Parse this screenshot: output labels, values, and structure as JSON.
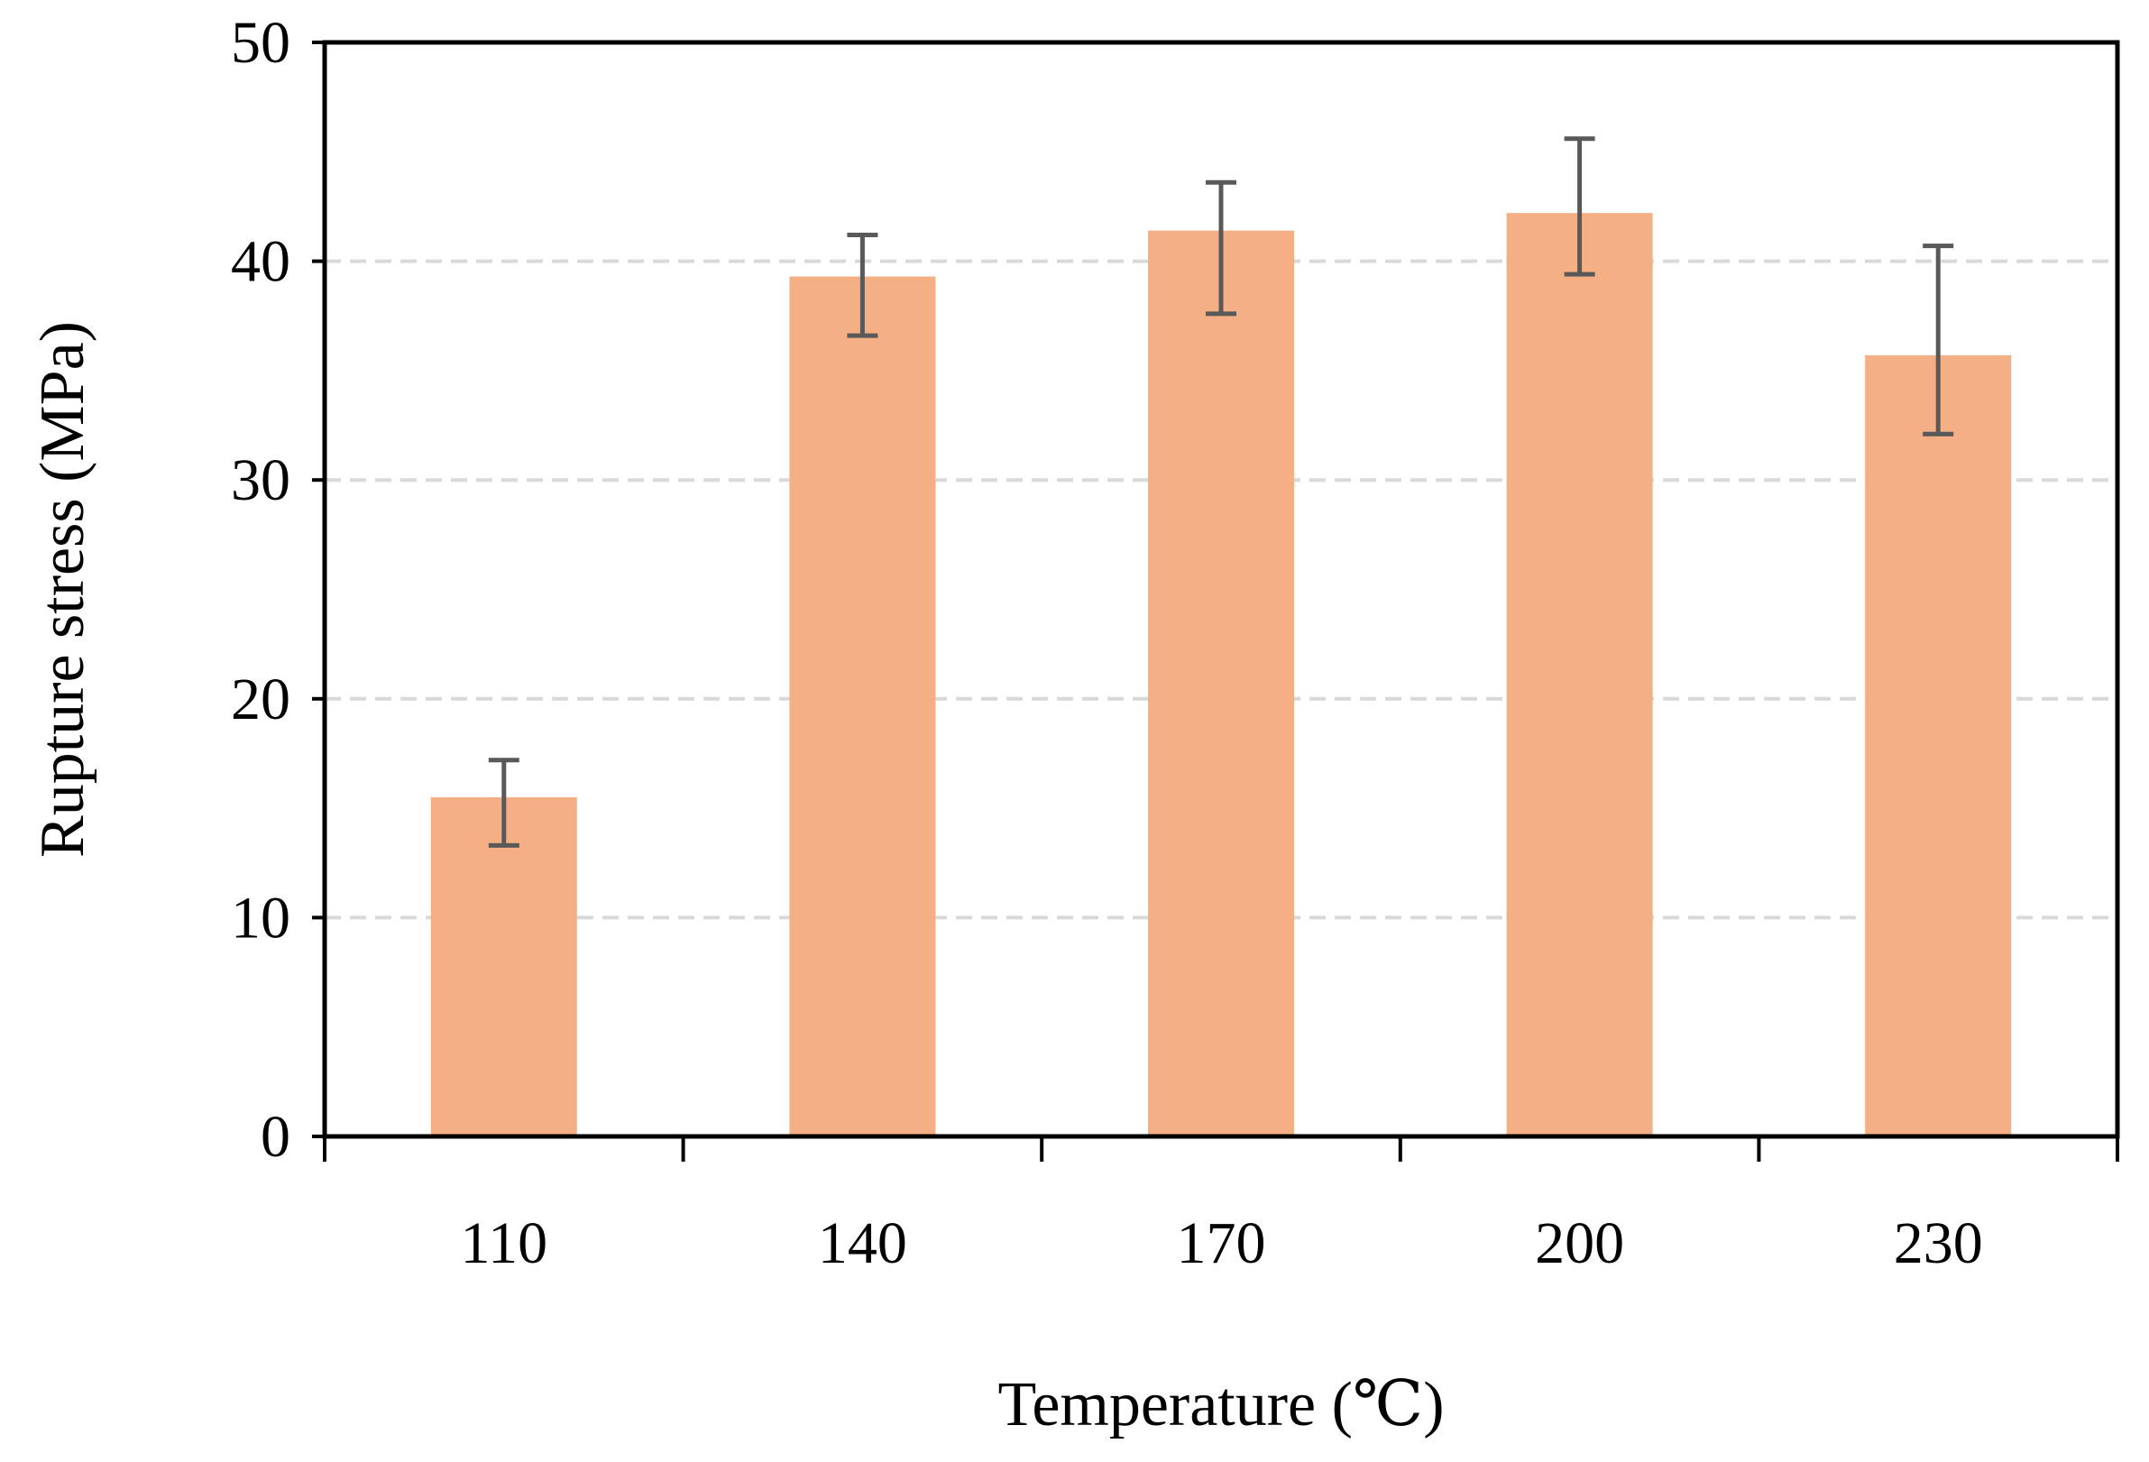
{
  "chart_data": {
    "type": "bar",
    "title": "",
    "xlabel": "Temperature (℃)",
    "ylabel": "Rupture stress (MPa)",
    "categories": [
      "110",
      "140",
      "170",
      "200",
      "230"
    ],
    "values": [
      15.5,
      39.3,
      41.4,
      42.2,
      35.7
    ],
    "error_low": [
      13.3,
      36.6,
      37.6,
      39.4,
      32.1
    ],
    "error_high": [
      17.2,
      41.2,
      43.6,
      45.6,
      40.7
    ],
    "ylim": [
      0,
      50
    ],
    "yticks": [
      "0",
      "10",
      "20",
      "30",
      "40",
      "50"
    ],
    "grid": "horizontal dashed",
    "legend": "none"
  },
  "colors": {
    "bar": "#F4B084",
    "error_bar": "#595959",
    "grid": "#D9D9D9",
    "axis": "#000000"
  }
}
